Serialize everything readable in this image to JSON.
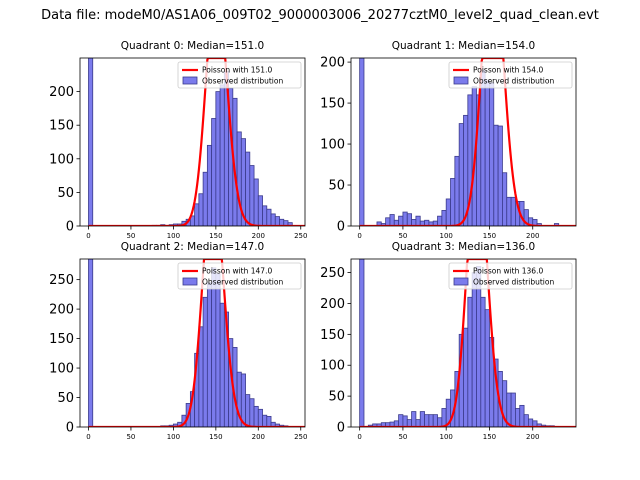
{
  "suptitle": "Data file: modeM0/AS1A06_009T02_9000003006_20277cztM0_level2_quad_clean.evt",
  "colors": {
    "bar_fill": "#7b7bec",
    "bar_edge": "#3b3b8c",
    "curve": "#ff0000"
  },
  "chart_data": [
    {
      "type": "bar",
      "title": "Quadrant 0: Median=151.0",
      "median": 151.0,
      "xlim": [
        -10,
        255
      ],
      "ylim": [
        0,
        250
      ],
      "xticks": [
        0,
        50,
        100,
        150,
        200,
        250
      ],
      "yticks": [
        0,
        50,
        100,
        150,
        200
      ],
      "bin_start": 0,
      "bin_width": 5,
      "values": [
        290,
        0,
        0,
        0,
        0,
        0,
        0,
        0,
        0,
        0,
        0,
        0,
        0,
        0,
        0,
        1,
        1,
        2,
        1,
        2,
        3,
        3,
        7,
        10,
        15,
        33,
        48,
        80,
        120,
        160,
        200,
        210,
        230,
        205,
        190,
        140,
        130,
        110,
        90,
        70,
        45,
        30,
        25,
        18,
        14,
        10,
        8,
        5
      ],
      "legend": [
        "Poisson with 151.0",
        "Observed distribution"
      ],
      "legend_position": "top-right"
    },
    {
      "type": "bar",
      "title": "Quadrant 1: Median=154.0",
      "median": 154.0,
      "xlim": [
        -10,
        250
      ],
      "ylim": [
        0,
        205
      ],
      "xticks": [
        0,
        50,
        100,
        150,
        200
      ],
      "yticks": [
        0,
        50,
        100,
        150,
        200
      ],
      "bin_start": 0,
      "bin_width": 5,
      "values": [
        265,
        0,
        0,
        0,
        5,
        3,
        10,
        14,
        7,
        12,
        17,
        15,
        8,
        12,
        6,
        7,
        5,
        6,
        12,
        19,
        33,
        58,
        85,
        125,
        135,
        160,
        170,
        160,
        190,
        178,
        175,
        123,
        122,
        65,
        35,
        35,
        30,
        30,
        20,
        10,
        8,
        3,
        0,
        0,
        0,
        3
      ],
      "legend": [
        "Poisson with 154.0",
        "Observed distribution"
      ],
      "legend_position": "top-right"
    },
    {
      "type": "bar",
      "title": "Quadrant 2: Median=147.0",
      "median": 147.0,
      "xlim": [
        -10,
        255
      ],
      "ylim": [
        0,
        285
      ],
      "xticks": [
        0,
        50,
        100,
        150,
        200,
        250
      ],
      "yticks": [
        0,
        50,
        100,
        150,
        200,
        250
      ],
      "bin_start": 0,
      "bin_width": 5,
      "values": [
        290,
        0,
        0,
        0,
        0,
        0,
        0,
        0,
        0,
        0,
        0,
        0,
        0,
        0,
        0,
        0,
        1,
        2,
        2,
        3,
        5,
        8,
        20,
        40,
        60,
        125,
        170,
        220,
        245,
        270,
        260,
        210,
        195,
        150,
        135,
        93,
        90,
        55,
        48,
        35,
        30,
        20,
        18,
        8,
        5,
        3,
        2,
        1
      ],
      "legend": [
        "Poisson with 147.0",
        "Observed distribution"
      ],
      "legend_position": "top-right"
    },
    {
      "type": "bar",
      "title": "Quadrant 3: Median=136.0",
      "median": 136.0,
      "xlim": [
        -10,
        250
      ],
      "ylim": [
        0,
        272
      ],
      "xticks": [
        0,
        50,
        100,
        150,
        200
      ],
      "yticks": [
        0,
        50,
        100,
        150,
        200,
        250
      ],
      "bin_start": 0,
      "bin_width": 5,
      "values": [
        280,
        0,
        3,
        5,
        5,
        7,
        7,
        8,
        10,
        20,
        18,
        12,
        25,
        12,
        25,
        20,
        20,
        20,
        15,
        30,
        45,
        60,
        90,
        150,
        160,
        210,
        250,
        260,
        210,
        190,
        145,
        110,
        90,
        75,
        55,
        55,
        30,
        35,
        20,
        13,
        10,
        5,
        3,
        2,
        2,
        1
      ],
      "legend": [
        "Poisson with 136.0",
        "Observed distribution"
      ],
      "legend_position": "top-right"
    }
  ]
}
